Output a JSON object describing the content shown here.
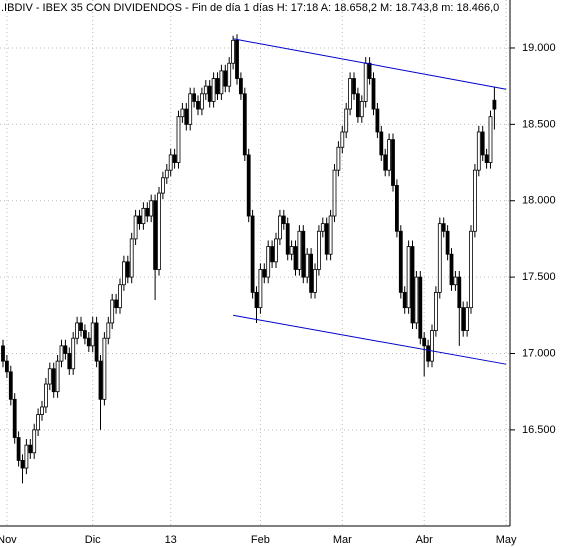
{
  "chart_data": {
    "type": "candlestick",
    "title": ".IBDIV - IBEX 35 CON DIVIDENDOS - Fin de día 1 días H: 17:18 A: 18.658,2 M: 18.743,8 m: 18.466,0",
    "categories": [
      null,
      "Nov",
      null,
      null,
      null,
      null,
      null,
      null,
      null,
      null,
      null,
      null,
      null,
      null,
      null,
      null,
      null,
      null,
      null,
      null,
      null,
      null,
      null,
      "Dic",
      null,
      null,
      null,
      null,
      null,
      null,
      null,
      null,
      null,
      null,
      null,
      null,
      null,
      null,
      null,
      null,
      null,
      null,
      null,
      "13",
      null,
      null,
      null,
      null,
      null,
      null,
      null,
      null,
      null,
      null,
      null,
      null,
      null,
      null,
      null,
      null,
      null,
      null,
      null,
      null,
      null,
      null,
      "Feb",
      null,
      null,
      null,
      null,
      null,
      null,
      null,
      null,
      null,
      null,
      null,
      null,
      null,
      null,
      null,
      null,
      null,
      null,
      null,
      null,
      "Mar",
      null,
      null,
      null,
      null,
      null,
      null,
      null,
      null,
      null,
      null,
      null,
      null,
      null,
      null,
      null,
      null,
      null,
      null,
      null,
      null,
      "Abr",
      null,
      null,
      null,
      null,
      null,
      null,
      null,
      null,
      null,
      null,
      null,
      null,
      null,
      null,
      null,
      null,
      null,
      null,
      null,
      null,
      "May"
    ],
    "open": [
      17050,
      16950,
      16880,
      16700,
      16450,
      16300,
      16250,
      16400,
      16350,
      16500,
      16600,
      16650,
      16800,
      16900,
      16750,
      16950,
      17050,
      17000,
      16900,
      17100,
      17200,
      17150,
      17100,
      17050,
      17200,
      16950,
      16700,
      17100,
      17200,
      17350,
      17300,
      17450,
      17600,
      17500,
      17750,
      17900,
      17850,
      17950,
      17900,
      18000,
      17550,
      18050,
      18150,
      18200,
      18300,
      18250,
      18550,
      18600,
      18500,
      18700,
      18650,
      18600,
      18700,
      18750,
      18650,
      18800,
      18700,
      18850,
      18750,
      18900,
      19050,
      18800,
      18700,
      18300,
      17900,
      17400,
      17300,
      17550,
      17500,
      17700,
      17600,
      17750,
      17900,
      17850,
      17650,
      17700,
      17550,
      17800,
      17500,
      17650,
      17400,
      17550,
      17800,
      17850,
      17650,
      17900,
      18200,
      18350,
      18450,
      18600,
      18800,
      18700,
      18550,
      18650,
      18900,
      18800,
      18600,
      18450,
      18300,
      18200,
      18400,
      18100,
      17800,
      17400,
      17300,
      17700,
      17200,
      17500,
      17100,
      17050,
      16950,
      17150,
      17400,
      17850,
      17800,
      17650,
      17450,
      17500,
      17300,
      17150,
      17300,
      17800,
      18200,
      18450,
      18300,
      18250,
      18658,
      null,
      null,
      null
    ],
    "high": [
      17090,
      16990,
      16920,
      16740,
      16490,
      16340,
      16440,
      16440,
      16540,
      16640,
      16690,
      16840,
      16940,
      16940,
      16990,
      17090,
      17090,
      17040,
      17140,
      17240,
      17240,
      17190,
      17140,
      17240,
      17240,
      16990,
      17140,
      17240,
      17390,
      17390,
      17490,
      17640,
      17640,
      17790,
      17940,
      17940,
      17990,
      17990,
      18040,
      18040,
      18090,
      18190,
      18240,
      18340,
      18340,
      18590,
      18640,
      18640,
      18740,
      18740,
      18690,
      18740,
      18790,
      18790,
      18840,
      18840,
      18890,
      18890,
      18940,
      19080,
      19090,
      18840,
      18740,
      18340,
      17940,
      17440,
      17590,
      17590,
      17740,
      17740,
      17790,
      17940,
      17940,
      17890,
      17740,
      17740,
      17840,
      17840,
      17690,
      17690,
      17590,
      17840,
      17890,
      17890,
      17940,
      18240,
      18390,
      18490,
      18640,
      18840,
      18840,
      18740,
      18690,
      18940,
      18940,
      18840,
      18640,
      18490,
      18340,
      18440,
      18440,
      18140,
      17840,
      17440,
      17740,
      17740,
      17540,
      17540,
      17140,
      17090,
      17190,
      17440,
      17890,
      17890,
      17840,
      17690,
      17540,
      17540,
      17340,
      17340,
      17840,
      18240,
      18490,
      18490,
      18340,
      18590,
      18744,
      null,
      null,
      null
    ],
    "low": [
      16910,
      16840,
      16660,
      16410,
      16260,
      16150,
      16210,
      16310,
      16310,
      16460,
      16560,
      16610,
      16760,
      16710,
      16710,
      16910,
      16960,
      16860,
      16860,
      17060,
      17110,
      17060,
      17010,
      17010,
      16910,
      16500,
      16660,
      17060,
      17160,
      17260,
      17260,
      17410,
      17460,
      17460,
      17710,
      17810,
      17810,
      17860,
      17860,
      17350,
      17510,
      18010,
      18110,
      18160,
      18210,
      18210,
      18510,
      18460,
      18460,
      18610,
      18560,
      18560,
      18660,
      18610,
      18610,
      18660,
      18660,
      18710,
      18710,
      18860,
      18760,
      18660,
      18260,
      17860,
      17360,
      17200,
      17260,
      17460,
      17460,
      17560,
      17560,
      17710,
      17810,
      17610,
      17610,
      17510,
      17510,
      17460,
      17460,
      17360,
      17360,
      17510,
      17760,
      17610,
      17610,
      17860,
      18160,
      18310,
      18410,
      18560,
      18660,
      18510,
      18510,
      18610,
      18760,
      18560,
      18410,
      18260,
      18160,
      18160,
      18060,
      17760,
      17360,
      17260,
      17260,
      17160,
      17160,
      17060,
      16850,
      16910,
      16910,
      17110,
      17360,
      17760,
      17610,
      17410,
      17410,
      17050,
      17110,
      17110,
      17260,
      17760,
      18160,
      18260,
      18210,
      18210,
      18466,
      null,
      null,
      null
    ],
    "close": [
      16950,
      16880,
      16700,
      16450,
      16300,
      16250,
      16400,
      16350,
      16500,
      16600,
      16650,
      16800,
      16900,
      16750,
      16950,
      17050,
      17000,
      16900,
      17100,
      17200,
      17150,
      17100,
      17050,
      17200,
      16950,
      16700,
      17100,
      17200,
      17350,
      17300,
      17450,
      17600,
      17500,
      17750,
      17900,
      17850,
      17950,
      17900,
      18000,
      17550,
      18050,
      18150,
      18200,
      18300,
      18250,
      18550,
      18600,
      18500,
      18700,
      18650,
      18600,
      18700,
      18750,
      18650,
      18800,
      18700,
      18850,
      18750,
      18900,
      19050,
      18800,
      18700,
      18300,
      17900,
      17400,
      17300,
      17550,
      17500,
      17700,
      17600,
      17750,
      17900,
      17850,
      17650,
      17700,
      17550,
      17800,
      17500,
      17650,
      17400,
      17550,
      17800,
      17850,
      17650,
      17900,
      18200,
      18350,
      18450,
      18600,
      18800,
      18700,
      18550,
      18650,
      18900,
      18800,
      18600,
      18450,
      18300,
      18200,
      18400,
      18100,
      17800,
      17400,
      17300,
      17700,
      17200,
      17500,
      17100,
      17050,
      16950,
      17150,
      17400,
      17850,
      17800,
      17650,
      17450,
      17500,
      17300,
      17150,
      17300,
      17800,
      18200,
      18450,
      18300,
      18250,
      18550,
      18600,
      null,
      null,
      null
    ],
    "up_color": "#ffffff",
    "down_color": "#000000",
    "trendlines": [
      {
        "color": "#0000cc",
        "x": [
          59,
          129
        ],
        "y": [
          19060,
          18730
        ]
      },
      {
        "color": "#0000cc",
        "x": [
          59,
          129
        ],
        "y": [
          17250,
          16930
        ]
      }
    ],
    "ylim": [
      15910,
      19314
    ],
    "yticks": [
      {
        "value": 16500,
        "label": "16.500"
      },
      {
        "value": 17000,
        "label": "17.000"
      },
      {
        "value": 17500,
        "label": "17.500"
      },
      {
        "value": 18000,
        "label": "18.000"
      },
      {
        "value": 18500,
        "label": "18.500"
      },
      {
        "value": 19000,
        "label": "19.000"
      }
    ],
    "grid": true
  }
}
